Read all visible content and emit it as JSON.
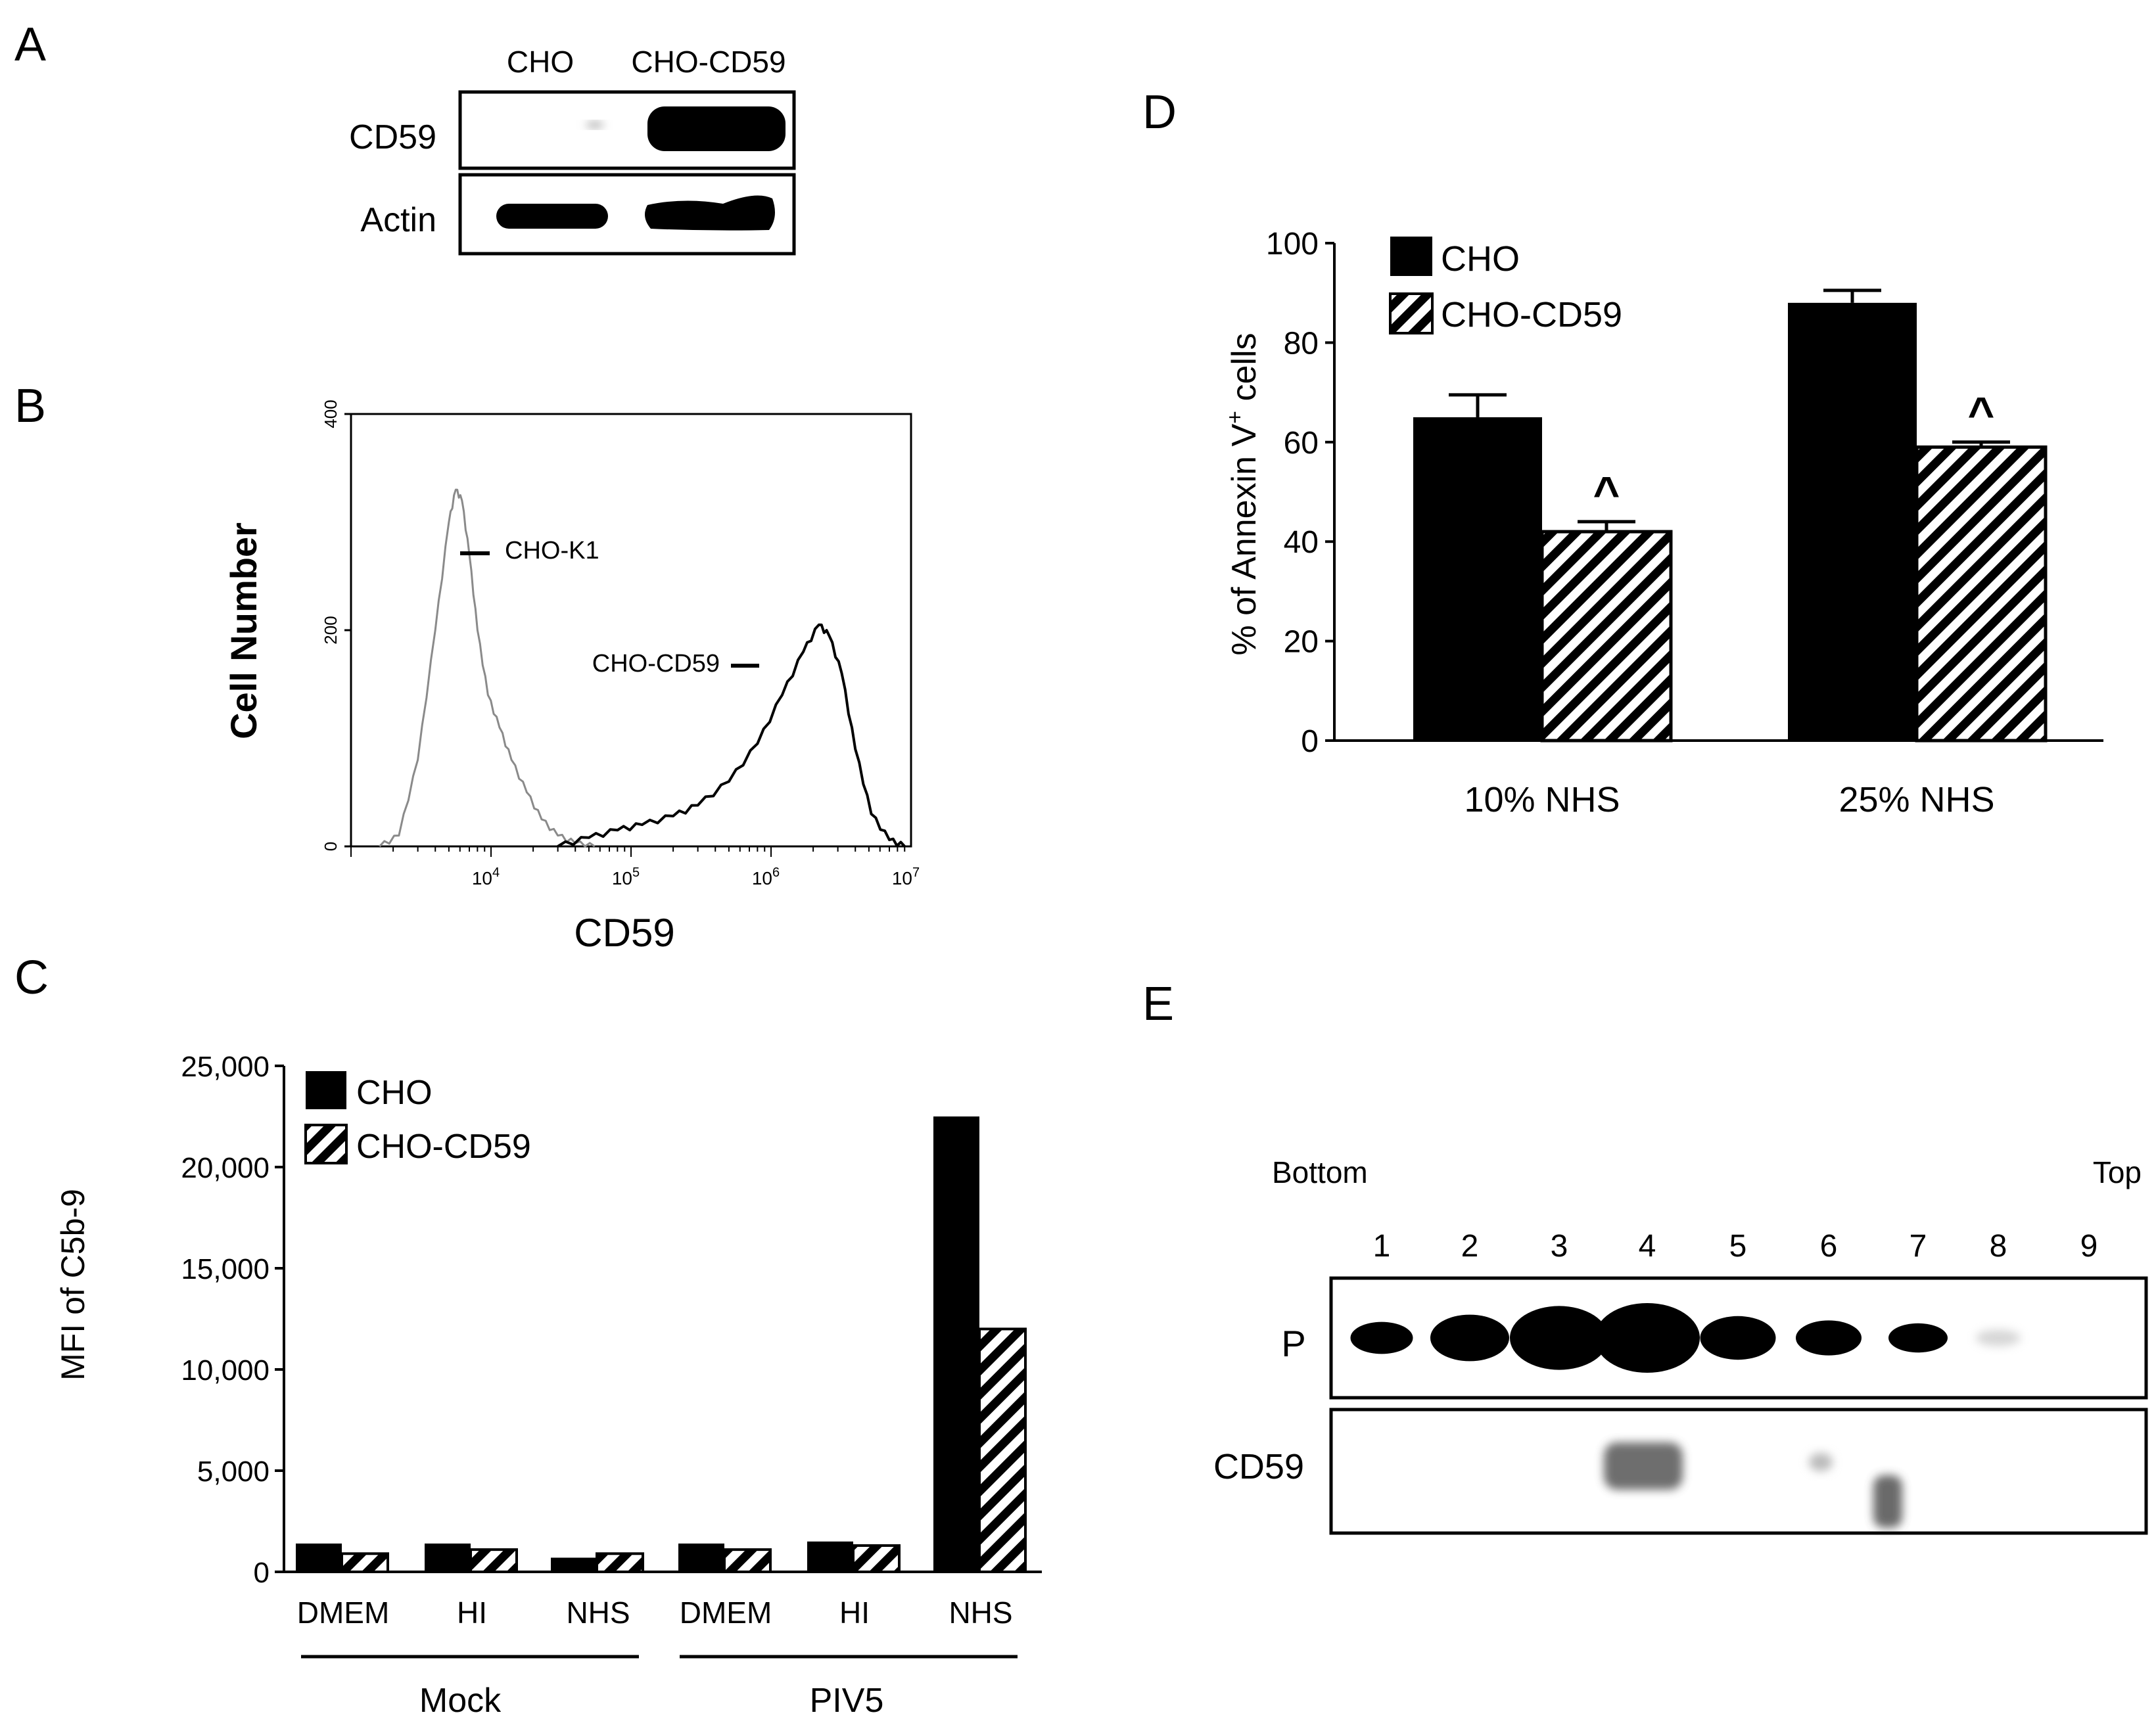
{
  "panels": {
    "a": "A",
    "b": "B",
    "c": "C",
    "d": "D",
    "e": "E"
  },
  "blot_a": {
    "lanes": [
      "CHO",
      "CHO-CD59"
    ],
    "rows": [
      "CD59",
      "Actin"
    ]
  },
  "blot_e": {
    "bottom_label": "Bottom",
    "top_label": "Top",
    "fractions": [
      "1",
      "2",
      "3",
      "4",
      "5",
      "6",
      "7",
      "8",
      "9"
    ],
    "rows": [
      "P",
      "CD59"
    ],
    "p_band_intensity": [
      0.35,
      0.6,
      0.9,
      1.0,
      0.55,
      0.4,
      0.3,
      0.08,
      0.0
    ]
  },
  "colors": {
    "bar_primary": "#000000",
    "background": "#ffffff",
    "hist_k1": "#8a8a8a",
    "hist_cd59": "#000000"
  },
  "chart_data": [
    {
      "id": "B",
      "type": "line",
      "title": "",
      "xlabel": "CD59",
      "ylabel": "Cell Number",
      "x_scale": "log",
      "xlim": [
        1000,
        10000000
      ],
      "ylim": [
        0,
        400
      ],
      "yticks": [
        "0",
        "200",
        "400"
      ],
      "xticks": [
        {
          "base": "10",
          "exp": "4",
          "value": 10000
        },
        {
          "base": "10",
          "exp": "5",
          "value": 100000
        },
        {
          "base": "10",
          "exp": "6",
          "value": 1000000
        },
        {
          "base": "10",
          "exp": "7",
          "value": 10000000
        }
      ],
      "series": [
        {
          "name": "CHO-K1",
          "x": [
            1600,
            2200,
            3000,
            4000,
            5000,
            5600,
            6200,
            7000,
            8000,
            9500,
            11500,
            14000,
            18000,
            23000,
            30000,
            40000,
            55000
          ],
          "y": [
            0,
            10,
            80,
            200,
            300,
            330,
            320,
            270,
            200,
            140,
            110,
            80,
            50,
            25,
            10,
            3,
            0
          ]
        },
        {
          "name": "CHO-CD59",
          "x": [
            30000,
            50000,
            80000,
            120000,
            200000,
            300000,
            500000,
            800000,
            1200000,
            1700000,
            2200000,
            2600000,
            3200000,
            4000000,
            5200000,
            7000000,
            9000000
          ],
          "y": [
            0,
            8,
            15,
            20,
            28,
            38,
            60,
            95,
            140,
            180,
            205,
            195,
            160,
            90,
            30,
            6,
            0
          ]
        }
      ],
      "annotations": [
        "CHO-K1",
        "CHO-CD59"
      ]
    },
    {
      "id": "C",
      "type": "bar",
      "title": "",
      "xlabel": "",
      "ylabel": "MFI of C5b-9",
      "ylim": [
        0,
        25000
      ],
      "yticks": [
        "0",
        "5,000",
        "10,000",
        "15,000",
        "20,000",
        "25,000"
      ],
      "categories": [
        "DMEM",
        "HI",
        "NHS",
        "DMEM",
        "HI",
        "NHS"
      ],
      "groups": [
        {
          "label": "Mock"
        },
        {
          "label": "PIV5"
        }
      ],
      "series": [
        {
          "name": "CHO",
          "values": [
            1400,
            1400,
            700,
            1400,
            1500,
            22500
          ]
        },
        {
          "name": "CHO-CD59",
          "values": [
            900,
            1100,
            900,
            1100,
            1300,
            12000
          ]
        }
      ]
    },
    {
      "id": "D",
      "type": "bar",
      "title": "",
      "xlabel": "",
      "ylabel_prefix": "% of Annexin V",
      "ylabel_sup": "+",
      "ylabel_suffix": " cells",
      "ylim": [
        0,
        100
      ],
      "yticks": [
        "0",
        "20",
        "40",
        "60",
        "80",
        "100"
      ],
      "categories": [
        "10% NHS",
        "25% NHS"
      ],
      "series": [
        {
          "name": "CHO",
          "values": [
            65,
            88
          ],
          "errors": [
            4.5,
            2.5
          ]
        },
        {
          "name": "CHO-CD59",
          "values": [
            42,
            59
          ],
          "errors": [
            2,
            1
          ]
        }
      ],
      "significance_mark": "^"
    }
  ]
}
